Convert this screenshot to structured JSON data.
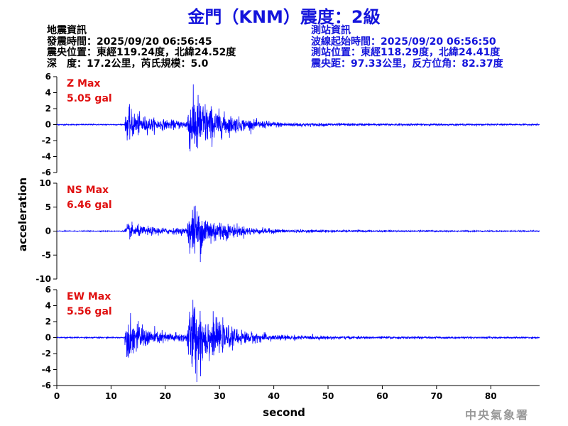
{
  "title": "金門（KNM）震度：2級",
  "left_info": [
    "地震資訊",
    "發震時間：2025/09/20 06:56:45",
    "震央位置：東經119.24度，北緯24.52度",
    "深　度：17.2公里，芮氏規模：5.0"
  ],
  "right_info": [
    "測站資訊",
    "波線起始時間：2025/09/20 06:56:50",
    "測站位置：東經118.29度，北緯24.41度",
    "震央距：97.33公里，反方位角：82.37度"
  ],
  "credit": "中央氣象署",
  "colors": {
    "title": "#1414dc",
    "trace": "#0000ff",
    "peak_label": "#e01010",
    "right_info": "#1414dc"
  },
  "chart_data": {
    "type": "line",
    "xlabel": "second",
    "ylabel": "acceleration",
    "xlim": [
      0,
      89
    ],
    "xticks": [
      0,
      10,
      20,
      30,
      40,
      50,
      60,
      70,
      80
    ],
    "p_arrival_s": 12.5,
    "s_arrival_s": 24.0,
    "panels": [
      {
        "name": "Z Max",
        "peak_label": "5.05 gal",
        "peak": 5.05,
        "ylim": [
          -6,
          6
        ],
        "yticks": [
          -6,
          -4,
          -2,
          0,
          2,
          4,
          6
        ],
        "p_amp": 2.0,
        "s_amp": 5.05
      },
      {
        "name": "NS Max",
        "peak_label": "6.46 gal",
        "peak": 6.46,
        "ylim": [
          -10,
          10
        ],
        "yticks": [
          -10,
          -5,
          0,
          5,
          10
        ],
        "p_amp": 1.3,
        "s_amp": 6.46
      },
      {
        "name": "EW Max",
        "peak_label": "5.56 gal",
        "peak": 5.56,
        "ylim": [
          -6,
          6
        ],
        "yticks": [
          -6,
          -4,
          -2,
          0,
          2,
          4,
          6
        ],
        "p_amp": 2.6,
        "s_amp": 5.56
      }
    ]
  }
}
